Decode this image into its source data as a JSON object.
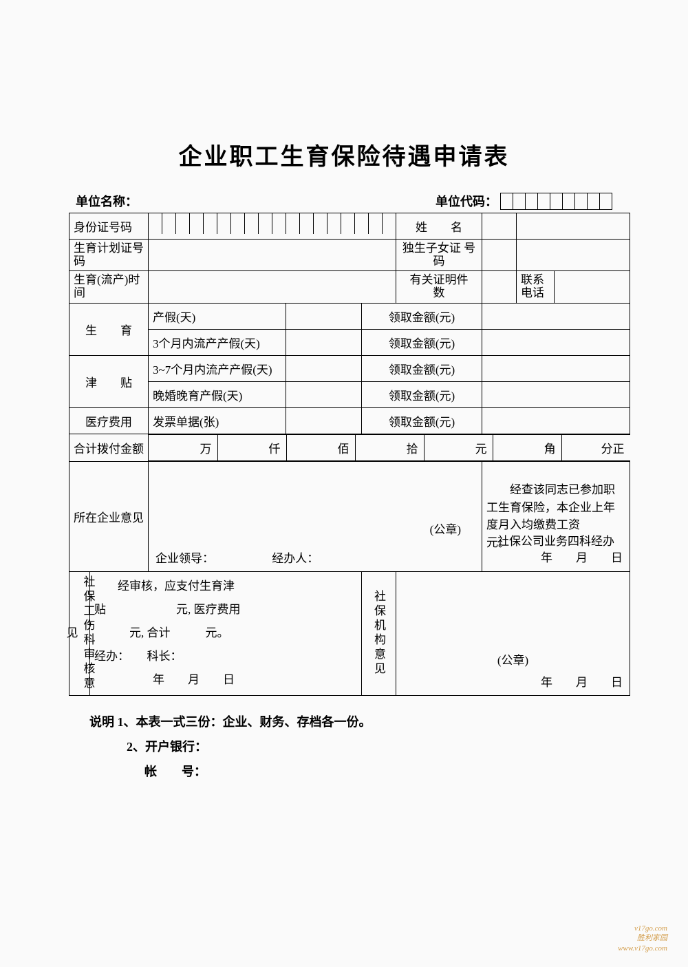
{
  "title": "企业职工生育保险待遇申请表",
  "header": {
    "unit_name_label": "单位名称：",
    "unit_code_label": "单位代码：",
    "code_box_count": 9
  },
  "rows": {
    "id_label": "身份证号码",
    "id_box_count": 18,
    "name_label": "姓　　名",
    "birth_plan_label": "生育计划证号　　　码",
    "only_child_label": "独生子女证 号 码",
    "birth_time_label": "生育(流产)时　　　间",
    "cert_count_label": "有关证明件　　　数",
    "contact_label": "联系电话"
  },
  "allowance": {
    "section_label": "生　　育",
    "section_label2": "津　　贴",
    "row1_label": "产假(天)",
    "row1_amt": "领取金额(元)",
    "row2_label": "3个月内流产产假(天)",
    "row2_amt": "领取金额(元)",
    "row3_label": "3~7个月内流产产假(天)",
    "row3_amt": "领取金额(元)",
    "row4_label": "晚婚晚育产假(天)",
    "row4_amt": "领取金额(元)"
  },
  "medical": {
    "label": "医疗费用",
    "receipt_label": "发票单据(张)",
    "amt_label": "领取金额(元)"
  },
  "total": {
    "label": "合计拨付金额",
    "wan": "万",
    "qian": "仟",
    "bai": "佰",
    "shi": "拾",
    "yuan": "元",
    "jiao": "角",
    "fen": "分正"
  },
  "company_opinion": {
    "label": "所在企业意见",
    "seal": "(公章)",
    "leader": "企业领导：",
    "handler": "经办人：",
    "right_text": "　　经查该同志已参加职工生育保险，本企业上年度月入均缴费工资　　　　元。",
    "right_bottom": "社保公司业务四科经办",
    "right_date": "年　　月　　日"
  },
  "audit": {
    "label": "社保工伤科审核意见",
    "line1": "　　经审核，应支付生育津",
    "line2": "贴　　　　　　元, 医疗费用",
    "line3": "　　　元, 合计　　　元。",
    "line4": "经办：　　科长：",
    "line5": "　　　　　年　　月　　日"
  },
  "org_opinion": {
    "label": "社保机构意见",
    "seal": "(公章)",
    "date": "年　　月　　日"
  },
  "notes": {
    "n1": "说明  1、本表一式三份：企业、财务、存档各一份。",
    "n2": "2、开户银行：",
    "n3": "帐　　号："
  },
  "watermark": {
    "l1": "v17go.com",
    "l2": "胜利家园",
    "l3": "www.v17go.com"
  }
}
